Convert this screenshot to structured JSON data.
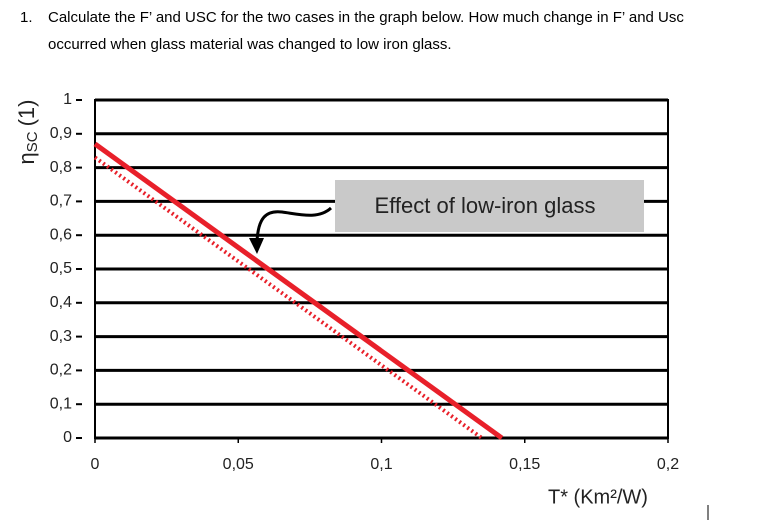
{
  "question": {
    "number": "1.",
    "lines": [
      "Calculate the F’ and USC for the two cases in the graph below. How much change in F’ and Usc",
      "occurred when glass material was changed to low iron glass."
    ]
  },
  "chart_data": {
    "type": "line",
    "ylabel": {
      "symbol": "η",
      "subscript": "SC",
      "unit": "(1)"
    },
    "xlabel": "T* (Km²/W)",
    "annotation": "Effect of low-iron glass",
    "xlim": [
      0,
      0.2
    ],
    "xticks": [
      0,
      {
        "value": 0.05,
        "label": "0,05"
      },
      {
        "value": 0.1,
        "label": "0,1"
      },
      {
        "value": 0.15,
        "label": "0,15"
      },
      {
        "value": 0.2,
        "label": "0,2"
      }
    ],
    "ylim": [
      0,
      1
    ],
    "yticks": [
      0,
      {
        "value": 0.1,
        "label": "0,1"
      },
      {
        "value": 0.2,
        "label": "0,2"
      },
      {
        "value": 0.3,
        "label": "0,3"
      },
      {
        "value": 0.4,
        "label": "0,4"
      },
      {
        "value": 0.5,
        "label": "0,5"
      },
      {
        "value": 0.6,
        "label": "0,6"
      },
      {
        "value": 0.7,
        "label": "0,7"
      },
      {
        "value": 0.8,
        "label": "0,8"
      },
      {
        "value": 0.9,
        "label": "0,9"
      },
      1
    ],
    "grid": true,
    "series": [
      {
        "color": "#e8202a",
        "style": "solid",
        "x": [
          0,
          0.142
        ],
        "values": [
          0.87,
          0
        ]
      },
      {
        "color": "#e8202a",
        "style": "dotted",
        "x": [
          0,
          0.135
        ],
        "values": [
          0.83,
          0
        ]
      }
    ]
  }
}
